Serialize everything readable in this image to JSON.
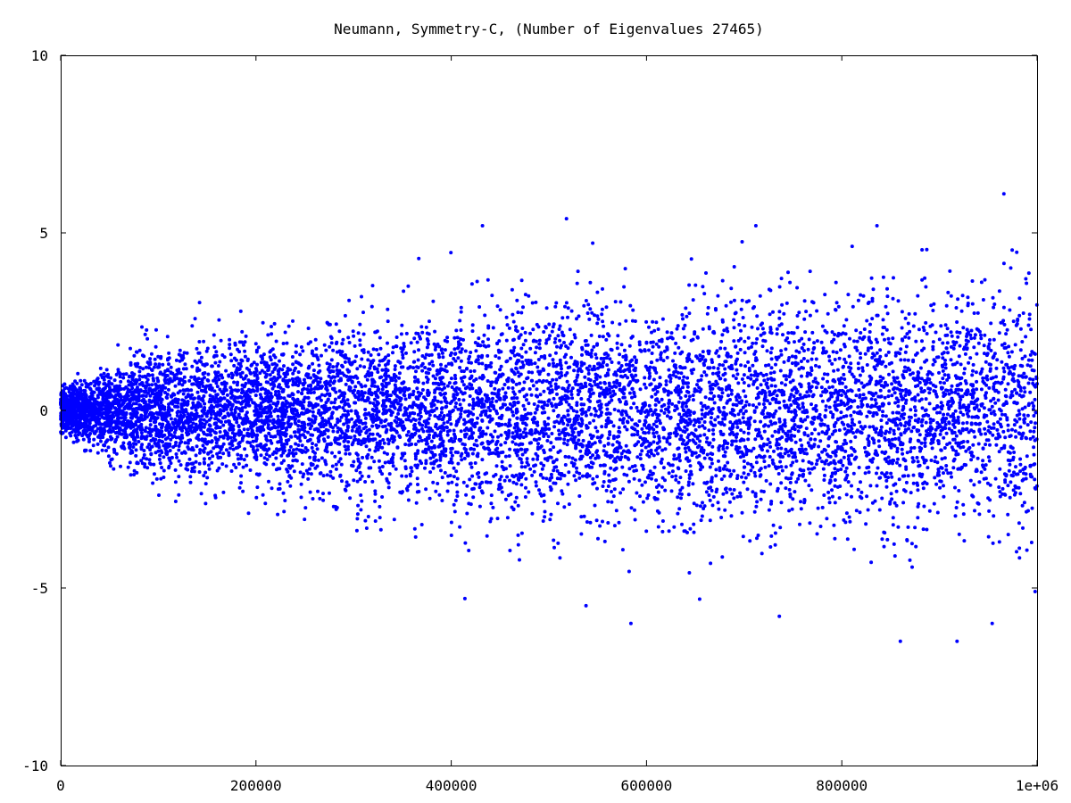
{
  "chart_data": {
    "type": "scatter",
    "title": "Neumann, Symmetry-C, (Number of Eigenvalues 27465)",
    "xlabel": "",
    "ylabel": "",
    "xlim": [
      0,
      1000000
    ],
    "ylim": [
      -10,
      10
    ],
    "x_ticks": [
      {
        "value": 0,
        "label": "0"
      },
      {
        "value": 200000,
        "label": "200000"
      },
      {
        "value": 400000,
        "label": "400000"
      },
      {
        "value": 600000,
        "label": "600000"
      },
      {
        "value": 800000,
        "label": "800000"
      },
      {
        "value": 1000000,
        "label": "1e+06"
      }
    ],
    "y_ticks": [
      {
        "value": -10,
        "label": "-10"
      },
      {
        "value": -5,
        "label": "-5"
      },
      {
        "value": 0,
        "label": "0"
      },
      {
        "value": 5,
        "label": "5"
      },
      {
        "value": 10,
        "label": "10"
      }
    ],
    "grid": false,
    "series": [
      {
        "color": "#0000ff",
        "marker": "dot",
        "count": 27465,
        "envelope": {
          "x": [
            0,
            100000,
            200000,
            300000,
            400000,
            500000,
            600000,
            700000,
            800000,
            900000,
            1000000
          ],
          "y_max": [
            1.0,
            3.3,
            3.2,
            3.9,
            4.5,
            5.4,
            4.2,
            5.2,
            4.9,
            4.5,
            6.1
          ],
          "y_min": [
            -1.0,
            -3.0,
            -3.6,
            -4.2,
            -5.3,
            -5.5,
            -6.0,
            -5.8,
            -6.5,
            -6.5,
            -6.0
          ]
        },
        "notable_points": [
          {
            "x": 432000,
            "y": 5.2
          },
          {
            "x": 518000,
            "y": 5.4
          },
          {
            "x": 712000,
            "y": 5.2
          },
          {
            "x": 836000,
            "y": 5.2
          },
          {
            "x": 966000,
            "y": 6.1
          },
          {
            "x": 414000,
            "y": -5.3
          },
          {
            "x": 538000,
            "y": -5.5
          },
          {
            "x": 584000,
            "y": -6.0
          },
          {
            "x": 736000,
            "y": -5.8
          },
          {
            "x": 860000,
            "y": -6.5
          },
          {
            "x": 918000,
            "y": -6.5
          },
          {
            "x": 954000,
            "y": -6.0
          },
          {
            "x": 998000,
            "y": -5.1
          }
        ]
      }
    ]
  }
}
